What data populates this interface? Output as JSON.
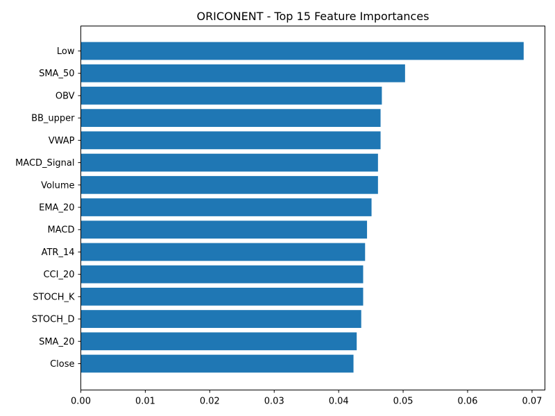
{
  "chart_data": {
    "type": "bar",
    "orientation": "horizontal",
    "title": "ORICONENT - Top 15 Feature Importances",
    "xlabel": "",
    "ylabel": "",
    "categories": [
      "Low",
      "SMA_50",
      "OBV",
      "BB_upper",
      "VWAP",
      "MACD_Signal",
      "Volume",
      "EMA_20",
      "MACD",
      "ATR_14",
      "CCI_20",
      "STOCH_K",
      "STOCH_D",
      "SMA_20",
      "Close"
    ],
    "values": [
      0.0687,
      0.0503,
      0.0467,
      0.0465,
      0.0465,
      0.0461,
      0.0461,
      0.0451,
      0.0444,
      0.0441,
      0.0438,
      0.0438,
      0.0435,
      0.0428,
      0.0423
    ],
    "xlim": [
      0,
      0.072
    ],
    "xticks": [
      "0.00",
      "0.01",
      "0.02",
      "0.03",
      "0.04",
      "0.05",
      "0.06",
      "0.07"
    ],
    "xtick_values": [
      0,
      0.01,
      0.02,
      0.03,
      0.04,
      0.05,
      0.06,
      0.07
    ],
    "bar_color": "#1f77b4",
    "grid": false,
    "legend": "none"
  }
}
